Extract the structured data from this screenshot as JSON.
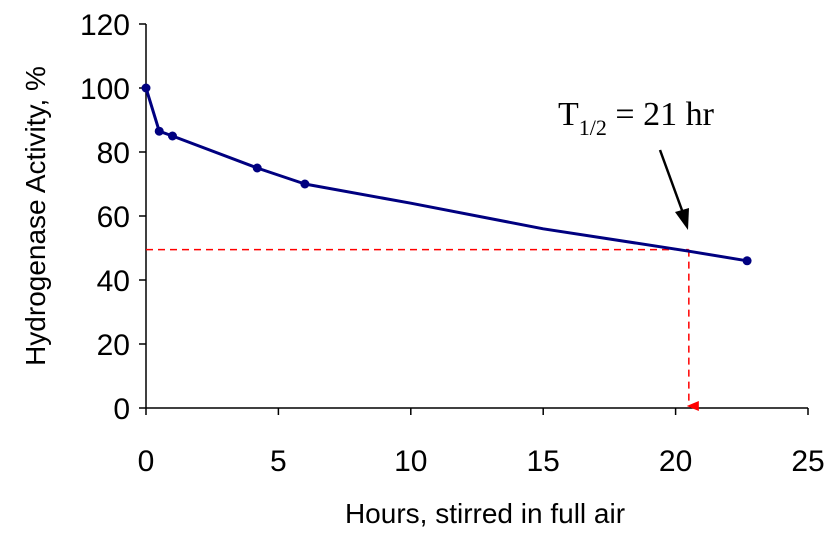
{
  "chart_data": {
    "type": "line",
    "title": "",
    "xlabel": "Hours, stirred in full air",
    "ylabel": "Hydrogenase Activity, %",
    "xlim": [
      0,
      25
    ],
    "ylim": [
      0,
      120
    ],
    "x_ticks": [
      "0",
      "5",
      "10",
      "15",
      "20",
      "25"
    ],
    "y_ticks": [
      "0",
      "20",
      "40",
      "60",
      "80",
      "100",
      "120"
    ],
    "grid": false,
    "series": [
      {
        "color": "#000080",
        "x": [
          0,
          0.5,
          1,
          4.2,
          6,
          22.7
        ],
        "y": [
          100,
          86.5,
          85,
          75,
          70,
          46
        ]
      }
    ],
    "curve_knots": {
      "x": [
        6,
        10,
        15,
        20.5,
        22.7
      ],
      "y": [
        70,
        64,
        56,
        49,
        46
      ]
    },
    "half_life_marker": {
      "x": 20.5,
      "y": 49.5,
      "color": "#ff0000"
    },
    "annotation": {
      "main": "T",
      "subscript": "1/2",
      "rest": " = 21 hr",
      "arrow_color": "#000000"
    }
  }
}
